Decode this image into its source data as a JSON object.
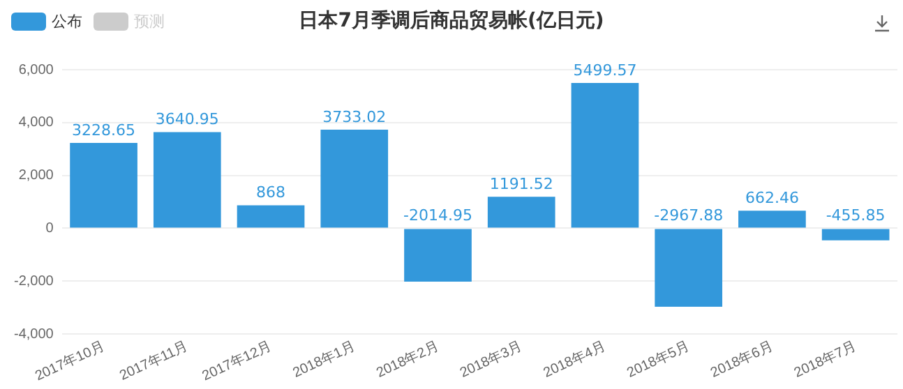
{
  "chart_data": {
    "type": "bar",
    "title": "日本7月季调后商品贸易帐(亿日元)",
    "categories": [
      "2017年10月",
      "2017年11月",
      "2017年12月",
      "2018年1月",
      "2018年2月",
      "2018年3月",
      "2018年4月",
      "2018年5月",
      "2018年6月",
      "2018年7月"
    ],
    "series": [
      {
        "name": "公布",
        "color": "#3398db",
        "values": [
          3228.65,
          3640.95,
          868,
          3733.02,
          -2014.95,
          1191.52,
          5499.57,
          -2967.88,
          662.46,
          -455.85
        ]
      },
      {
        "name": "预测",
        "color": "#cccccc",
        "values": [
          null,
          null,
          null,
          null,
          null,
          null,
          null,
          null,
          null,
          null
        ]
      }
    ],
    "ylim": [
      -4000,
      6000
    ],
    "yticks": [
      {
        "value": -4000,
        "label": "-4,000"
      },
      {
        "value": -2000,
        "label": "-2,000"
      },
      0,
      {
        "value": 2000,
        "label": "2,000"
      },
      {
        "value": 4000,
        "label": "4,000"
      },
      {
        "value": 6000,
        "label": "6,000"
      }
    ],
    "grid": "y",
    "legend": "top left",
    "data_labels": true
  }
}
